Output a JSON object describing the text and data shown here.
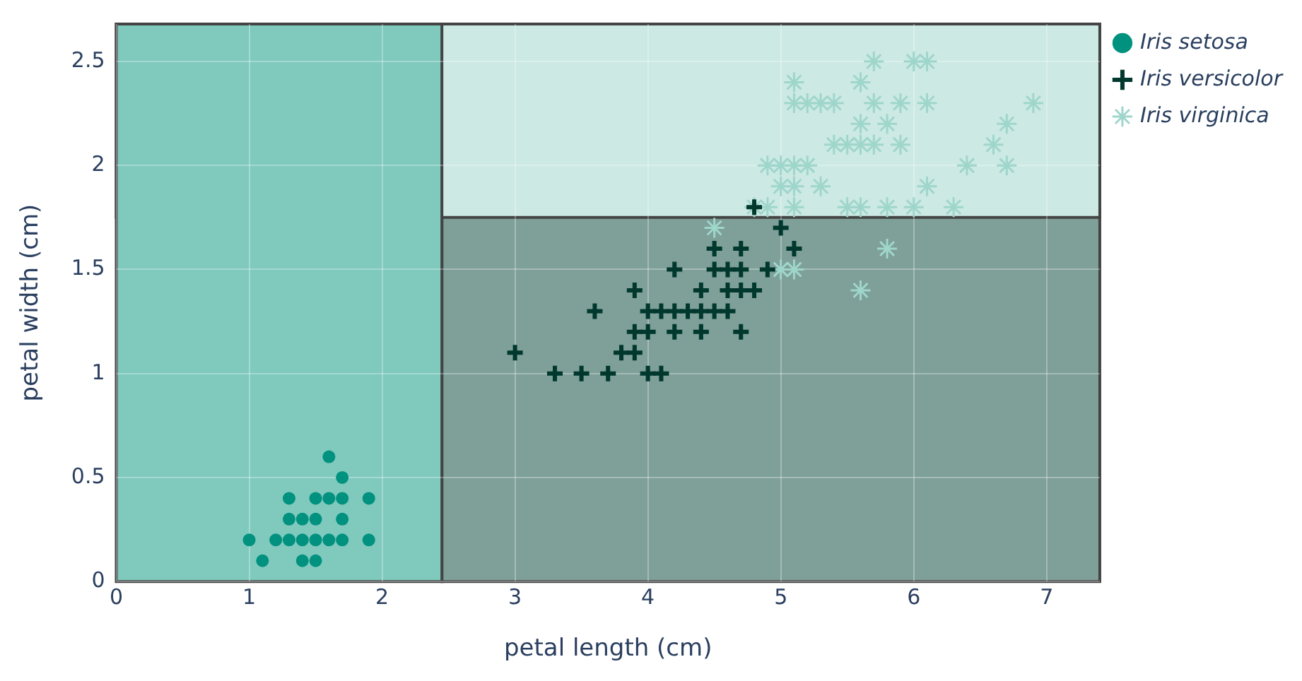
{
  "chart_data": {
    "type": "scatter",
    "xlabel": "petal length (cm)",
    "ylabel": "petal width (cm)",
    "xlim": [
      0,
      7.4
    ],
    "ylim": [
      0,
      2.68
    ],
    "xticks": [
      0,
      1,
      2,
      3,
      4,
      5,
      6,
      7
    ],
    "yticks": [
      0,
      0.5,
      1,
      1.5,
      2,
      2.5
    ],
    "grid": true,
    "legend": "right",
    "bands": [
      {
        "axis": "x",
        "from": 2.45,
        "to": 7.4,
        "color": "#7f9f99"
      },
      {
        "axis": "y",
        "from": 1.75,
        "to": 2.68,
        "color": "#cce9e4"
      },
      {
        "axis": "x",
        "from": 0,
        "to": 2.45,
        "color": "#7fc9bd"
      }
    ],
    "series": [
      {
        "name": "Iris setosa",
        "color": "#00917f",
        "marker": "circle",
        "x": [
          1.4,
          1.3,
          1.5,
          1.7,
          1.4,
          1.5,
          1.6,
          1.4,
          1.1,
          1.2,
          1.5,
          1.3,
          1.7,
          1.5,
          1.7,
          1.0,
          1.7,
          1.9,
          1.6,
          1.3,
          1.6,
          1.9
        ],
        "values": [
          0.2,
          0.2,
          0.2,
          0.4,
          0.3,
          0.1,
          0.2,
          0.1,
          0.1,
          0.2,
          0.4,
          0.4,
          0.3,
          0.3,
          0.2,
          0.2,
          0.5,
          0.2,
          0.4,
          0.3,
          0.6,
          0.4
        ]
      },
      {
        "name": "Iris versicolor",
        "color": "#00382e",
        "marker": "cross",
        "x": [
          4.7,
          4.5,
          4.9,
          4.0,
          4.6,
          4.5,
          4.7,
          3.3,
          4.6,
          3.9,
          3.5,
          4.2,
          4.0,
          3.6,
          4.4,
          4.1,
          3.9,
          4.8,
          4.7,
          4.3,
          4.8,
          5.0,
          3.8,
          3.7,
          3.9,
          5.1,
          4.5,
          4.7,
          4.4,
          4.1,
          4.4,
          4.6,
          4.0,
          4.2,
          4.2,
          3.0
        ],
        "values": [
          1.4,
          1.5,
          1.5,
          1.3,
          1.5,
          1.3,
          1.6,
          1.0,
          1.3,
          1.4,
          1.0,
          1.5,
          1.0,
          1.3,
          1.4,
          1.0,
          1.1,
          1.8,
          1.2,
          1.3,
          1.4,
          1.7,
          1.1,
          1.0,
          1.2,
          1.6,
          1.6,
          1.5,
          1.3,
          1.3,
          1.2,
          1.4,
          1.2,
          1.3,
          1.2,
          1.1
        ]
      },
      {
        "name": "Iris virginica",
        "color": "#9fd6cb",
        "x": [
          6.0,
          5.1,
          5.9,
          5.6,
          5.8,
          6.6,
          4.5,
          6.3,
          5.8,
          6.1,
          5.1,
          5.3,
          5.5,
          5.0,
          5.1,
          5.3,
          5.5,
          6.7,
          6.9,
          5.0,
          5.7,
          4.9,
          6.7,
          4.9,
          5.7,
          6.0,
          4.8,
          5.6,
          5.8,
          6.1,
          6.4,
          5.6,
          5.1,
          5.6,
          6.1,
          5.6,
          5.4,
          5.1,
          5.9,
          5.7,
          5.2,
          5.0,
          5.2,
          5.4,
          5.1
        ],
        "values": [
          2.5,
          1.9,
          2.1,
          1.8,
          2.2,
          2.1,
          1.7,
          1.8,
          1.8,
          2.5,
          2.0,
          1.9,
          2.1,
          2.0,
          2.4,
          2.3,
          1.8,
          2.2,
          2.3,
          1.5,
          2.3,
          2.0,
          2.0,
          1.8,
          2.1,
          1.8,
          1.8,
          2.1,
          1.6,
          1.9,
          2.0,
          2.2,
          1.5,
          1.4,
          2.3,
          2.4,
          2.1,
          2.3,
          2.3,
          2.5,
          2.3,
          1.9,
          2.0,
          2.3,
          1.8
        ]
      }
    ]
  }
}
